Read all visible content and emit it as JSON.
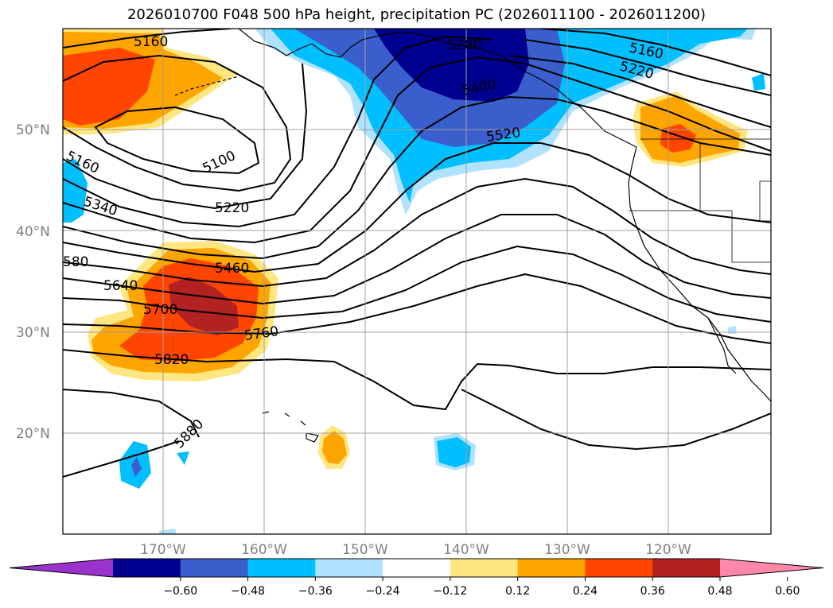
{
  "title": "2026010700 F048 500 hPa height, precipitation PC (2026011100 - 2026011200)",
  "map": {
    "lat_labels": [
      "50°N",
      "40°N",
      "30°N",
      "20°N"
    ],
    "lon_labels": [
      "170°W",
      "160°W",
      "150°W",
      "140°W",
      "130°W",
      "120°W"
    ],
    "contour_labels": [
      "5160",
      "5280",
      "5160",
      "5220",
      "5400",
      "5520",
      "5160",
      "5100",
      "5340",
      "5220",
      "580",
      "5460",
      "5640",
      "5700",
      "5760",
      "5820",
      "5880"
    ]
  },
  "colorbar": {
    "ticks": [
      "−0.60",
      "−0.48",
      "−0.36",
      "−0.24",
      "−0.12",
      "0.12",
      "0.24",
      "0.36",
      "0.48",
      "0.60"
    ],
    "colors": [
      "#9933cc",
      "#000090",
      "#3a5fcd",
      "#00bfff",
      "#b0e2ff",
      "#ffffff",
      "#ffe680",
      "#ffa500",
      "#ff4500",
      "#b22222",
      "#ff88aa"
    ]
  }
}
